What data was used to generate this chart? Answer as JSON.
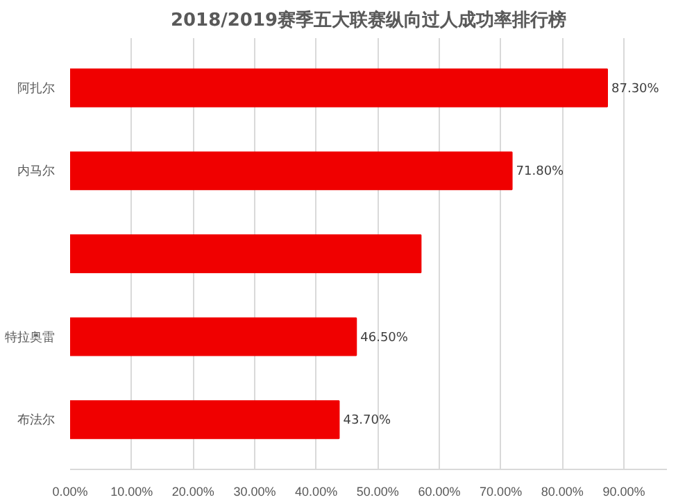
{
  "chart_data": {
    "type": "bar",
    "orientation": "horizontal",
    "title": "2018/2019赛季五大联赛纵向过人成功率排行榜",
    "categories": [
      "阿扎尔",
      "内马尔",
      null,
      "特拉奥雷",
      "布法尔"
    ],
    "values": [
      87.3,
      71.8,
      57,
      46.5,
      43.7
    ],
    "value_labels": [
      "87.30%",
      "71.80%",
      null,
      "46.50%",
      "43.70%"
    ],
    "color": "#f00000",
    "xlim": [
      0,
      97
    ],
    "xticks": [
      {
        "value": 0,
        "label": "0.00%"
      },
      {
        "value": 10,
        "label": "10.00%"
      },
      {
        "value": 20,
        "label": "20.00%"
      },
      {
        "value": 30,
        "label": "30.00%"
      },
      {
        "value": 40,
        "label": "40.00%"
      },
      {
        "value": 50,
        "label": "50.00%"
      },
      {
        "value": 60,
        "label": "60.00%"
      },
      {
        "value": 70,
        "label": "70.00%"
      },
      {
        "value": 80,
        "label": "80.00%"
      },
      {
        "value": 90,
        "label": "90.00%"
      }
    ],
    "grid": "x"
  }
}
